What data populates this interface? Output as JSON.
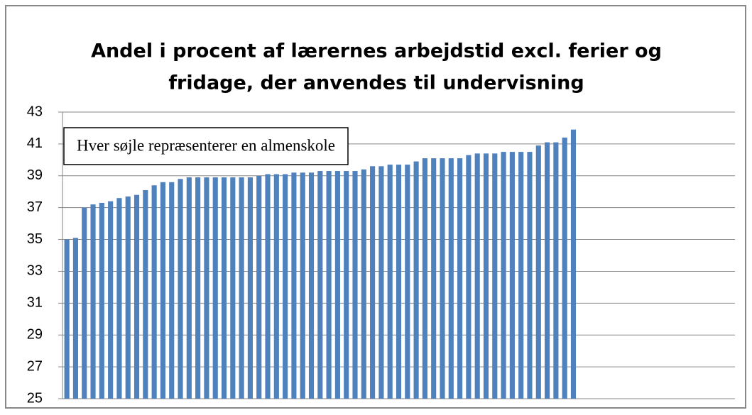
{
  "chart_data": {
    "type": "bar",
    "title": [
      "Andel i procent af lærernes arbejdstid excl. ferier og",
      "fridage, der anvendes til undervisning"
    ],
    "annotation": "Hver søjle repræsenterer en almenskole",
    "categories": [
      null,
      null,
      null,
      null,
      null,
      null,
      null,
      null,
      null,
      null,
      null,
      null,
      null,
      null,
      null,
      null,
      null,
      null,
      null,
      null,
      null,
      null,
      null,
      null,
      null,
      null,
      null,
      null,
      null,
      null,
      null,
      null,
      null,
      null,
      null,
      null,
      null,
      null,
      null,
      null,
      null,
      null,
      null,
      null,
      null,
      null,
      null,
      null,
      null,
      null,
      null,
      null,
      null,
      null,
      null,
      null,
      null,
      null,
      null,
      null,
      null,
      null,
      null,
      null,
      null,
      null,
      null,
      null,
      null,
      null,
      null,
      null,
      null,
      null,
      null,
      null,
      null
    ],
    "values": [
      35.0,
      35.1,
      37.0,
      37.2,
      37.3,
      37.4,
      37.6,
      37.7,
      37.8,
      38.1,
      38.4,
      38.6,
      38.6,
      38.8,
      38.9,
      38.9,
      38.9,
      38.9,
      38.9,
      38.9,
      38.9,
      38.9,
      39.0,
      39.1,
      39.1,
      39.1,
      39.2,
      39.2,
      39.2,
      39.3,
      39.3,
      39.3,
      39.3,
      39.3,
      39.4,
      39.6,
      39.6,
      39.7,
      39.7,
      39.7,
      39.9,
      40.1,
      40.1,
      40.1,
      40.1,
      40.1,
      40.3,
      40.4,
      40.4,
      40.4,
      40.5,
      40.5,
      40.5,
      40.5,
      40.9,
      41.1,
      41.1,
      41.4,
      41.9,
      null,
      null,
      null,
      null,
      null,
      null,
      null,
      null,
      null,
      null,
      null,
      null,
      null,
      null,
      null,
      null,
      null,
      null
    ],
    "color": "#4f81bd",
    "ylim": [
      25,
      43
    ],
    "yticks": [
      25,
      27,
      29,
      31,
      33,
      35,
      37,
      39,
      41,
      43
    ],
    "grid": true
  }
}
